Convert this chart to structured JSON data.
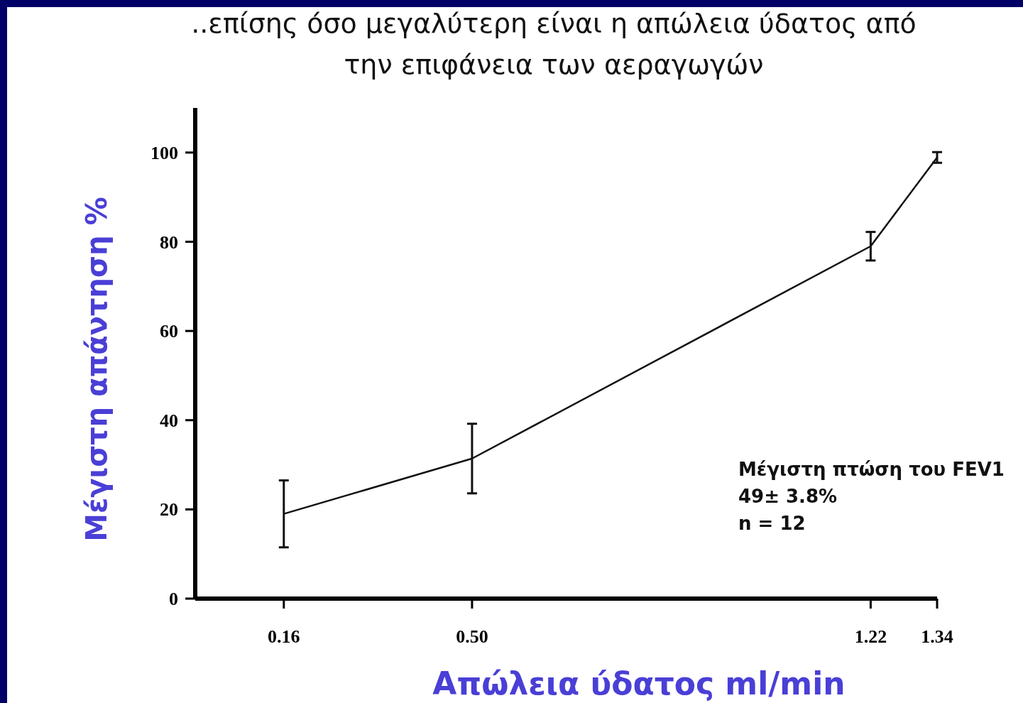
{
  "chart_data": {
    "type": "line",
    "title": "..επίσης όσο μεγαλύτερη είναι η απώλεια ύδατος από την επιφάνεια των αεραγωγών",
    "xlabel": "Απώλεια ύδατος ml/min",
    "ylabel": "Μέγιστη απάντηση %",
    "x": [
      0.16,
      0.5,
      1.22,
      1.34
    ],
    "series": [
      {
        "color": "#111111",
        "values": [
          19,
          31.4,
          79,
          98.9
        ],
        "errors": [
          7.5,
          7.8,
          3.2,
          1.2
        ]
      }
    ],
    "xlim": [
      0,
      1.34
    ],
    "xticks": [
      {
        "value": 0.16,
        "label": "0.16"
      },
      {
        "value": 0.5,
        "label": "0.50"
      },
      {
        "value": 1.22,
        "label": "1.22"
      },
      {
        "value": 1.34,
        "label": "1.34"
      }
    ],
    "ylim": [
      0,
      110
    ],
    "yticks": [
      0,
      20,
      40,
      60,
      80,
      100
    ],
    "marker": "none",
    "line_style": "solid",
    "grid": false,
    "annotations": [
      "Μέγιστη πτώση του FEV1",
      "49± 3.8%",
      "n = 12"
    ]
  }
}
